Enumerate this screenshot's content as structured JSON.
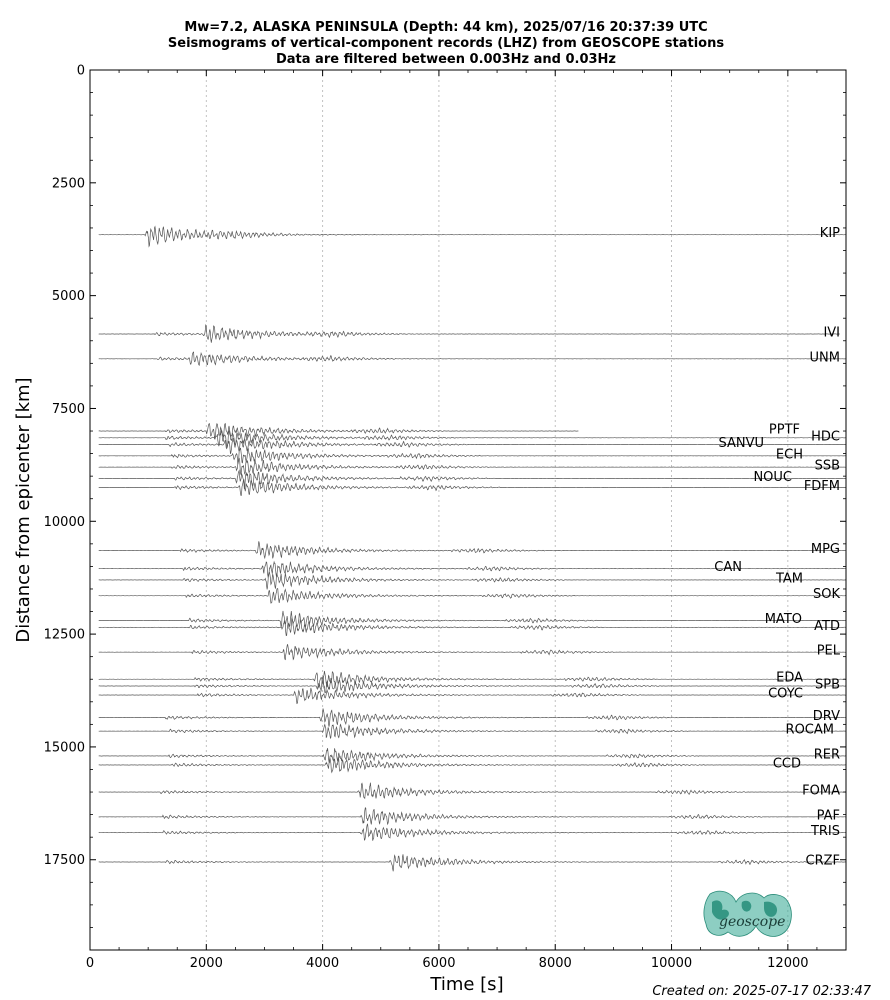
{
  "chart_data": {
    "type": "line",
    "title_lines": [
      "Mw=7.2, ALASKA PENINSULA (Depth: 44 km), 2025/07/16 20:37:39 UTC",
      "Seismograms of vertical-component records (LHZ) from GEOSCOPE stations",
      "Data are filtered between 0.003Hz and 0.03Hz"
    ],
    "xlabel": "Time [s]",
    "ylabel": "Distance from epicenter [km]",
    "xlim": [
      0,
      13000
    ],
    "ylim": [
      19500,
      0
    ],
    "x_ticks": [
      "0",
      "2000",
      "4000",
      "6000",
      "8000",
      "10000",
      "12000"
    ],
    "y_ticks": [
      "0",
      "2500",
      "5000",
      "7500",
      "10000",
      "12500",
      "15000",
      "17500"
    ],
    "x_grid": true,
    "y_inverted": true,
    "stations": [
      {
        "name": "KIP",
        "distance": 3650,
        "p_arrival": 950,
        "s_arrival": 1000,
        "end_time": 13000,
        "amp": 1.0,
        "label_side": "right"
      },
      {
        "name": "IVI",
        "distance": 5850,
        "p_arrival": 1100,
        "s_arrival": 2000,
        "end_time": 12900,
        "amp": 1.0,
        "label_side": "right"
      },
      {
        "name": "UNM",
        "distance": 6400,
        "p_arrival": 1150,
        "s_arrival": 1750,
        "end_time": 13000,
        "amp": 0.8,
        "label_side": "right"
      },
      {
        "name": "PPTF",
        "distance": 8000,
        "p_arrival": 1300,
        "s_arrival": 2050,
        "end_time": 8400,
        "amp": 1.0,
        "label_side": "right"
      },
      {
        "name": "HDC",
        "distance": 8150,
        "p_arrival": 1300,
        "s_arrival": 2200,
        "end_time": 13000,
        "amp": 1.0,
        "label_side": "right"
      },
      {
        "name": "SANVU",
        "distance": 8300,
        "p_arrival": 1350,
        "s_arrival": 2350,
        "end_time": 13000,
        "amp": 1.0,
        "label_side": "right"
      },
      {
        "name": "ECH",
        "distance": 8550,
        "p_arrival": 1400,
        "s_arrival": 2500,
        "end_time": 13000,
        "amp": 1.0,
        "label_side": "right"
      },
      {
        "name": "SSB",
        "distance": 8800,
        "p_arrival": 1400,
        "s_arrival": 2550,
        "end_time": 13000,
        "amp": 1.0,
        "label_side": "right"
      },
      {
        "name": "NOUC",
        "distance": 9050,
        "p_arrival": 1450,
        "s_arrival": 2550,
        "end_time": 13000,
        "amp": 1.0,
        "label_side": "right"
      },
      {
        "name": "FDFM",
        "distance": 9250,
        "p_arrival": 1450,
        "s_arrival": 2600,
        "end_time": 13000,
        "amp": 1.0,
        "label_side": "right"
      },
      {
        "name": "MPG",
        "distance": 10650,
        "p_arrival": 1550,
        "s_arrival": 2900,
        "end_time": 13000,
        "amp": 1.0,
        "label_side": "right"
      },
      {
        "name": "CAN",
        "distance": 11050,
        "p_arrival": 1600,
        "s_arrival": 3000,
        "end_time": 13000,
        "amp": 1.0,
        "label_side": "right"
      },
      {
        "name": "TAM",
        "distance": 11300,
        "p_arrival": 1600,
        "s_arrival": 3050,
        "end_time": 13000,
        "amp": 1.0,
        "label_side": "right"
      },
      {
        "name": "SOK",
        "distance": 11650,
        "p_arrival": 1650,
        "s_arrival": 3100,
        "end_time": 13000,
        "amp": 0.9,
        "label_side": "right"
      },
      {
        "name": "MATO",
        "distance": 12200,
        "p_arrival": 1700,
        "s_arrival": 3300,
        "end_time": 13000,
        "amp": 1.0,
        "label_side": "right"
      },
      {
        "name": "ATD",
        "distance": 12350,
        "p_arrival": 1700,
        "s_arrival": 3350,
        "end_time": 13000,
        "amp": 1.0,
        "label_side": "right"
      },
      {
        "name": "PEL",
        "distance": 12900,
        "p_arrival": 1750,
        "s_arrival": 3350,
        "end_time": 13000,
        "amp": 0.9,
        "label_side": "right"
      },
      {
        "name": "EDA",
        "distance": 13500,
        "p_arrival": 1800,
        "s_arrival": 3900,
        "end_time": 13000,
        "amp": 1.0,
        "label_side": "right"
      },
      {
        "name": "SPB",
        "distance": 13650,
        "p_arrival": 1800,
        "s_arrival": 3950,
        "end_time": 13000,
        "amp": 1.0,
        "label_side": "right"
      },
      {
        "name": "COYC",
        "distance": 13850,
        "p_arrival": 1850,
        "s_arrival": 3550,
        "end_time": 13000,
        "amp": 0.9,
        "label_side": "right"
      },
      {
        "name": "DRV",
        "distance": 14350,
        "p_arrival": 1300,
        "s_arrival": 4000,
        "end_time": 13000,
        "amp": 1.0,
        "label_side": "right"
      },
      {
        "name": "ROCAM",
        "distance": 14650,
        "p_arrival": 1350,
        "s_arrival": 4050,
        "end_time": 13000,
        "amp": 1.0,
        "label_side": "right"
      },
      {
        "name": "RER",
        "distance": 15200,
        "p_arrival": 1350,
        "s_arrival": 4050,
        "end_time": 13000,
        "amp": 1.0,
        "label_side": "right"
      },
      {
        "name": "CCD",
        "distance": 15400,
        "p_arrival": 1400,
        "s_arrival": 4100,
        "end_time": 13000,
        "amp": 1.0,
        "label_side": "right"
      },
      {
        "name": "FOMA",
        "distance": 16000,
        "p_arrival": 1200,
        "s_arrival": 4650,
        "end_time": 13000,
        "amp": 1.0,
        "label_side": "right"
      },
      {
        "name": "PAF",
        "distance": 16550,
        "p_arrival": 1250,
        "s_arrival": 4700,
        "end_time": 13000,
        "amp": 1.0,
        "label_side": "right"
      },
      {
        "name": "TRIS",
        "distance": 16900,
        "p_arrival": 1250,
        "s_arrival": 4700,
        "end_time": 13000,
        "amp": 1.0,
        "label_side": "right"
      },
      {
        "name": "CRZF",
        "distance": 17550,
        "p_arrival": 1300,
        "s_arrival": 5200,
        "end_time": 13000,
        "amp": 1.0,
        "label_side": "right"
      }
    ],
    "trace_color": "#555555",
    "grid_color": "#bbbbbb"
  },
  "footer": {
    "created_on": "Created on: 2025-07-17 02:33:47"
  },
  "logo": {
    "text": "geoscope",
    "color": "#2fa58f"
  }
}
